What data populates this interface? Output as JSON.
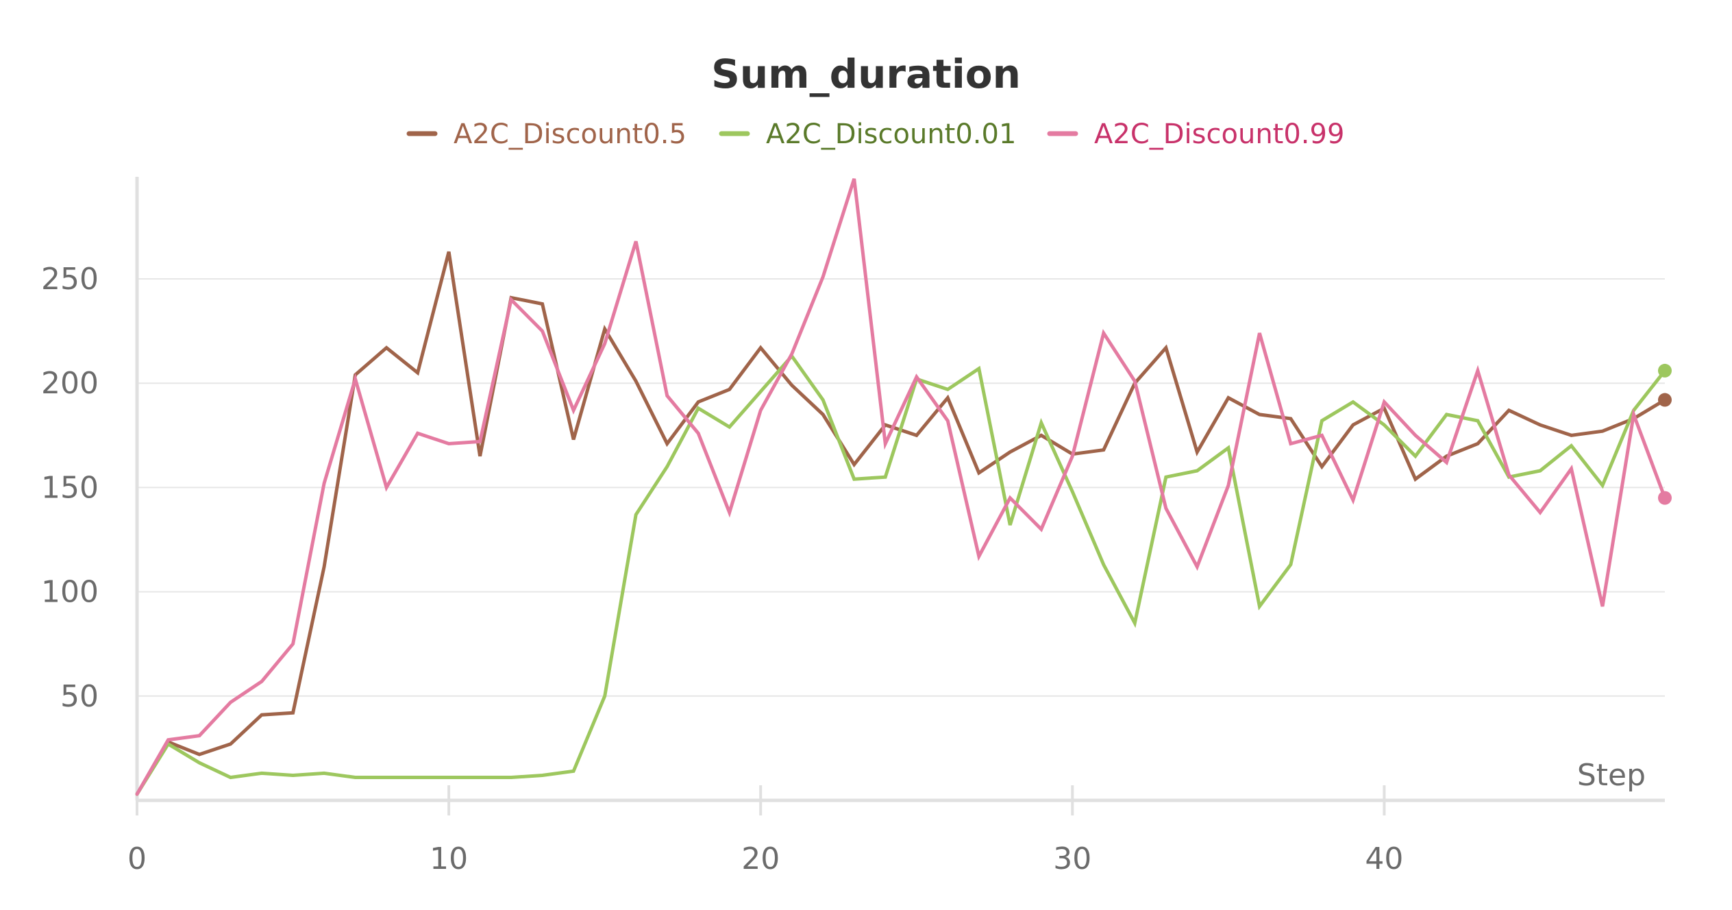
{
  "chart_data": {
    "type": "line",
    "title": "Sum_duration",
    "xlabel": "Step",
    "ylabel": "",
    "xlim": [
      0,
      49
    ],
    "ylim": [
      0,
      300
    ],
    "xticks": [
      0,
      10,
      20,
      30,
      40
    ],
    "yticks": [
      50,
      100,
      150,
      200,
      250
    ],
    "grid": "horizontal",
    "legend": "top-center",
    "x": [
      0,
      1,
      2,
      3,
      4,
      5,
      6,
      7,
      8,
      9,
      10,
      11,
      12,
      13,
      14,
      15,
      16,
      17,
      18,
      19,
      20,
      21,
      22,
      23,
      24,
      25,
      26,
      27,
      28,
      29,
      30,
      31,
      32,
      33,
      34,
      35,
      36,
      37,
      38,
      39,
      40,
      41,
      42,
      43,
      44,
      45,
      46,
      47,
      48,
      49
    ],
    "series": [
      {
        "name": "A2C_Discount0.5",
        "color": "#a0644a",
        "text_color": "#a0644a",
        "values": [
          3,
          28,
          22,
          27,
          41,
          42,
          112,
          204,
          217,
          205,
          263,
          165,
          241,
          238,
          173,
          226,
          201,
          171,
          191,
          197,
          217,
          199,
          185,
          161,
          180,
          175,
          193,
          157,
          167,
          175,
          166,
          168,
          200,
          217,
          167,
          193,
          185,
          183,
          160,
          180,
          188,
          154,
          165,
          171,
          187,
          180,
          175,
          177,
          183,
          192
        ]
      },
      {
        "name": "A2C_Discount0.01",
        "color": "#9dc75e",
        "text_color": "#5a7a2a",
        "values": [
          3,
          27,
          18,
          11,
          13,
          12,
          13,
          11,
          11,
          11,
          11,
          11,
          11,
          12,
          14,
          50,
          137,
          160,
          188,
          179,
          196,
          213,
          192,
          154,
          155,
          202,
          197,
          207,
          132,
          181,
          148,
          113,
          85,
          155,
          158,
          169,
          93,
          113,
          182,
          191,
          180,
          165,
          185,
          182,
          155,
          158,
          170,
          151,
          187,
          206
        ]
      },
      {
        "name": "A2C_Discount0.99",
        "color": "#e47ba1",
        "text_color": "#c8326a",
        "values": [
          3,
          29,
          31,
          47,
          57,
          75,
          152,
          202,
          150,
          176,
          171,
          172,
          240,
          225,
          187,
          219,
          268,
          194,
          176,
          138,
          187,
          214,
          251,
          298,
          171,
          203,
          182,
          117,
          145,
          130,
          165,
          224,
          201,
          140,
          112,
          151,
          224,
          171,
          175,
          144,
          191,
          175,
          162,
          206,
          156,
          138,
          159,
          93,
          185,
          145
        ]
      }
    ]
  }
}
